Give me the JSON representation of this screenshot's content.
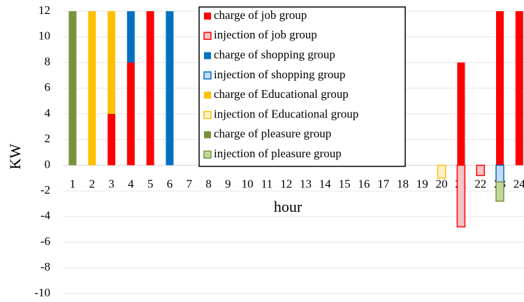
{
  "chart_data": {
    "type": "bar",
    "stacked": true,
    "y_label": "KW",
    "x_label": "hour",
    "categories": [
      "1",
      "2",
      "3",
      "4",
      "5",
      "6",
      "7",
      "8",
      "9",
      "10",
      "11",
      "12",
      "13",
      "14",
      "15",
      "16",
      "17",
      "18",
      "19",
      "20",
      "21",
      "22",
      "23",
      "24"
    ],
    "series": [
      {
        "name": "charge of job group",
        "color": "#ff0000",
        "fill": "#ff0000",
        "values": [
          0,
          0,
          4,
          8,
          12,
          0,
          0,
          0,
          0,
          0,
          0,
          0,
          0,
          0,
          0,
          0,
          0,
          0,
          0,
          0,
          8,
          0,
          12,
          12
        ]
      },
      {
        "name": "injection of job group",
        "color": "#ff0000",
        "fill": "#f8c4c4",
        "values": [
          0,
          0,
          0,
          0,
          0,
          0,
          0,
          0,
          0,
          0,
          0,
          0,
          0,
          0,
          0,
          0,
          0,
          0,
          0,
          0,
          -4.8,
          -0.8,
          0,
          0
        ]
      },
      {
        "name": "charge of shopping group",
        "color": "#0070c0",
        "fill": "#0070c0",
        "values": [
          0,
          0,
          0,
          4,
          0,
          12,
          0,
          0,
          0,
          0,
          0,
          0,
          0,
          0,
          0,
          0,
          0,
          0,
          0,
          0,
          0,
          0,
          0,
          0
        ]
      },
      {
        "name": "injection of shopping group",
        "color": "#0070c0",
        "fill": "#c5d9f1",
        "values": [
          0,
          0,
          0,
          0,
          0,
          0,
          0,
          0,
          0,
          0,
          0,
          0,
          0,
          0,
          0,
          0,
          0,
          0,
          0,
          0,
          0,
          0,
          -1.3,
          0
        ]
      },
      {
        "name": "charge of Educational group",
        "color": "#ffc000",
        "fill": "#ffc000",
        "values": [
          0,
          12,
          8,
          0,
          0,
          0,
          0,
          0,
          0,
          0,
          0,
          0,
          0,
          0,
          0,
          0,
          0,
          0,
          0,
          0,
          0,
          0,
          0,
          0
        ]
      },
      {
        "name": "injection of Educational group",
        "color": "#ffc000",
        "fill": "#fff2cc",
        "values": [
          0,
          0,
          0,
          0,
          0,
          0,
          0,
          0,
          0,
          0,
          0,
          0,
          0,
          0,
          0,
          0,
          0,
          0,
          0,
          -1,
          0,
          0,
          0,
          0
        ]
      },
      {
        "name": "charge of pleasure group",
        "color": "#77933c",
        "fill": "#77933c",
        "values": [
          12,
          0,
          0,
          0,
          0,
          0,
          0,
          0,
          0,
          0,
          0,
          0,
          0,
          0,
          0,
          0,
          0,
          0,
          0,
          0,
          0,
          0,
          0,
          0
        ]
      },
      {
        "name": "injection of pleasure group",
        "color": "#77933c",
        "fill": "#c4d79b",
        "values": [
          0,
          0,
          0,
          0,
          0,
          0,
          0,
          0,
          0,
          0,
          0,
          0,
          0,
          0,
          0,
          0,
          0,
          0,
          0,
          0,
          0,
          0,
          -1.5,
          0
        ]
      }
    ],
    "ylim": [
      -10,
      12
    ],
    "yticks": [
      -10,
      -8,
      -6,
      -4,
      -2,
      0,
      2,
      4,
      6,
      8,
      10,
      12
    ],
    "grid": true,
    "legend": "top"
  }
}
